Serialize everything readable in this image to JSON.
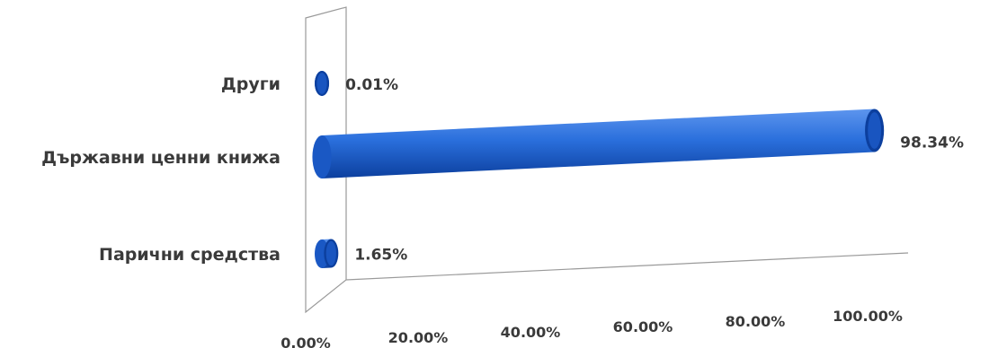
{
  "chart_data": {
    "type": "bar",
    "orientation": "horizontal",
    "style": "3d-cylinder",
    "categories": [
      "Други",
      "Държавни ценни книжа",
      "Парични средства"
    ],
    "values": [
      0.01,
      98.34,
      1.65
    ],
    "data_labels": [
      "0.01%",
      "98.34%",
      "1.65%"
    ],
    "x_ticks": [
      "0.00%",
      "20.00%",
      "40.00%",
      "60.00%",
      "80.00%",
      "100.00%"
    ],
    "xlim": [
      0,
      100
    ],
    "grid": false,
    "legend": "none",
    "colors": {
      "bar": "#1f63d6",
      "bar_dark": "#0c3f9e",
      "bar_light": "#5d95ee",
      "axis": "#9a9a9a",
      "text": "#3a3a3a"
    }
  }
}
